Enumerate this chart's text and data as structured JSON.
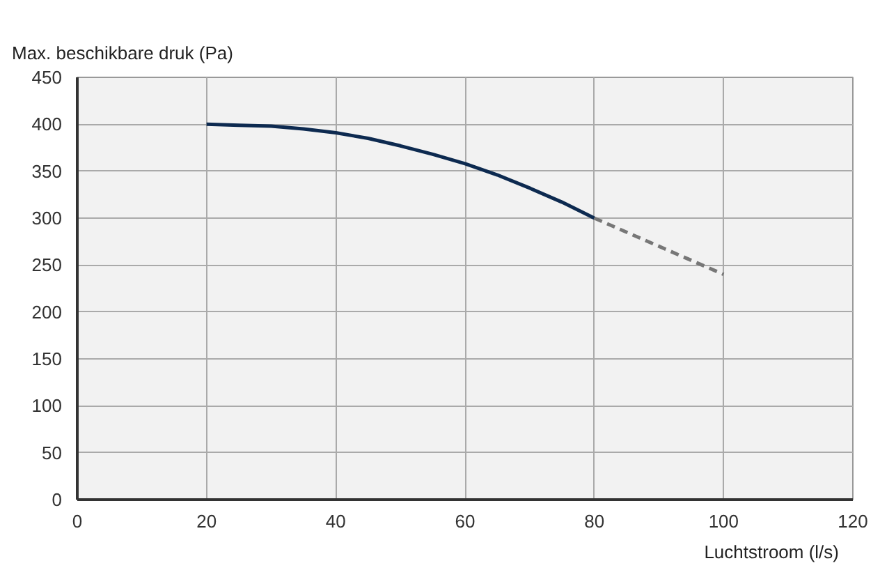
{
  "chart_data": {
    "type": "line",
    "ylabel": "Max. beschikbare druk (Pa)",
    "xlabel": "Luchtstroom (l/s)",
    "series": [
      {
        "color": "#0d2a50",
        "line_style": "solid",
        "x": [
          20,
          25,
          30,
          35,
          40,
          45,
          50,
          55,
          60,
          65,
          70,
          75,
          80
        ],
        "values": [
          400,
          399,
          398,
          395,
          391,
          385,
          377,
          368,
          358,
          346,
          332,
          317,
          300
        ]
      },
      {
        "color": "#777777",
        "line_style": "dashed",
        "x": [
          80,
          100
        ],
        "values": [
          300,
          240
        ]
      }
    ],
    "xlim": [
      0,
      120
    ],
    "ylim": [
      0,
      450
    ],
    "xticks": [
      0,
      20,
      40,
      60,
      80,
      100,
      120
    ],
    "yticks": [
      0,
      50,
      100,
      150,
      200,
      250,
      300,
      350,
      400,
      450
    ],
    "grid": true
  }
}
